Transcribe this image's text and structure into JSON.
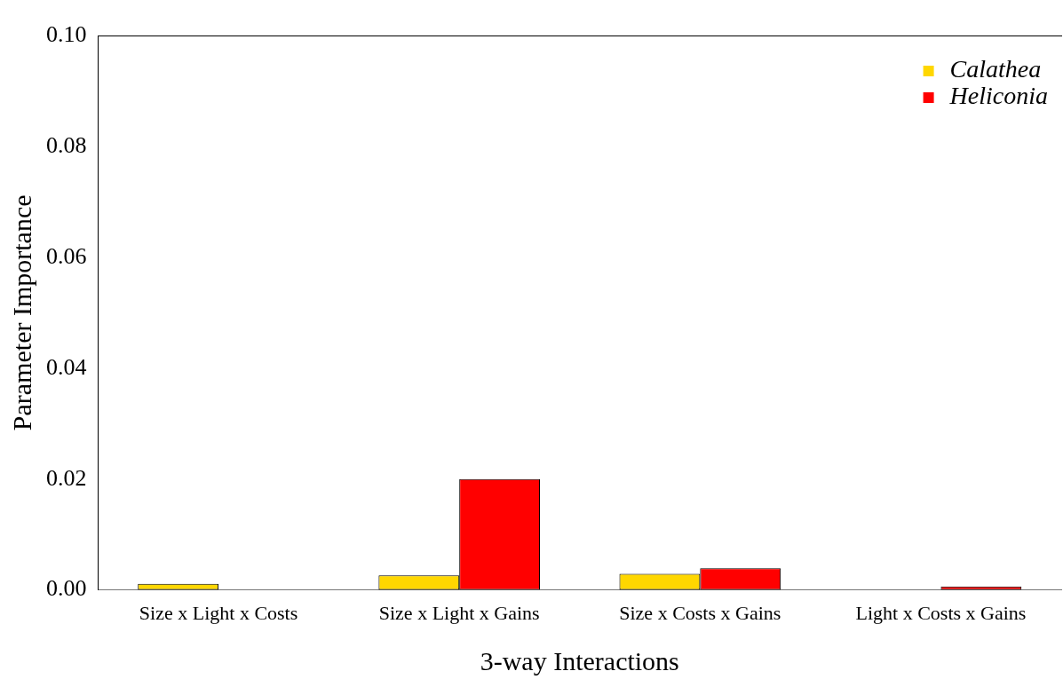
{
  "chart_data": {
    "type": "bar",
    "xlabel": "3-way Interactions",
    "ylabel": "Parameter Importance",
    "categories": [
      "Size x Light x Costs",
      "Size x Light x Gains",
      "Size x Costs x Gains",
      "Light x Costs x Gains"
    ],
    "series": [
      {
        "name": "Calathea",
        "color": "#ffd700",
        "values": [
          0.0011,
          0.0026,
          0.0029,
          0
        ]
      },
      {
        "name": "Heliconia",
        "color": "#ff0000",
        "values": [
          0,
          0.02,
          0.0039,
          0.0006
        ]
      }
    ],
    "ylim": [
      0,
      0.1
    ],
    "yticks": [
      {
        "value": 0,
        "label": "0.00"
      },
      {
        "value": 0.02,
        "label": "0.02"
      },
      {
        "value": 0.04,
        "label": "0.04"
      },
      {
        "value": 0.06,
        "label": "0.06"
      },
      {
        "value": 0.08,
        "label": "0.08"
      },
      {
        "value": 0.1,
        "label": "0.10"
      }
    ],
    "grid": false,
    "legend": "top right"
  }
}
